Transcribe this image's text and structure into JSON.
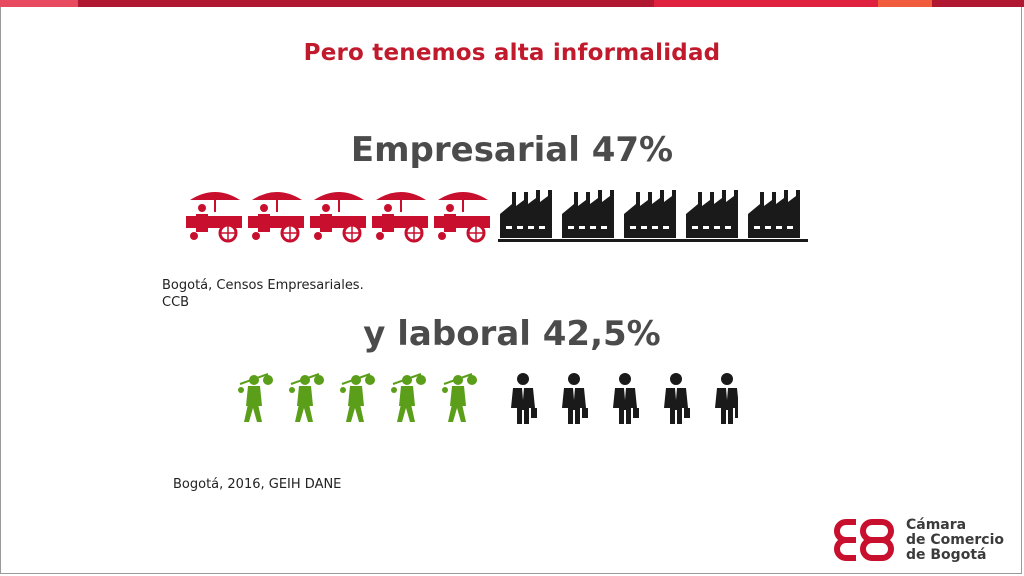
{
  "title": "Pero tenemos alta informalidad",
  "business": {
    "heading": "Empresarial 47%",
    "source_line1": "Bogotá, Censos Empresariales.",
    "source_line2": "CCB",
    "icons": [
      "street-vendor-cart-icon",
      "street-vendor-cart-icon",
      "street-vendor-cart-icon",
      "street-vendor-cart-icon",
      "street-vendor-cart-icon",
      "factory-icon",
      "factory-icon",
      "factory-icon",
      "factory-icon",
      "factory-icon"
    ],
    "informal_color": "#c8102e",
    "formal_color": "#1a1a1a"
  },
  "labor": {
    "heading": "y laboral 42,5%",
    "source": "Bogotá, 2016, GEIH DANE",
    "icons": [
      "informal-worker-icon",
      "informal-worker-icon",
      "informal-worker-icon",
      "informal-worker-icon",
      "informal-worker-icon",
      "businessman-icon",
      "businessman-icon",
      "businessman-icon",
      "businessman-icon",
      "businessman-icon"
    ],
    "informal_color": "#5a9e1a",
    "formal_color": "#1a1a1a"
  },
  "logo": {
    "line1": "Cámara",
    "line2": "de Comercio",
    "line3": "de Bogotá",
    "color": "#c8102e"
  }
}
